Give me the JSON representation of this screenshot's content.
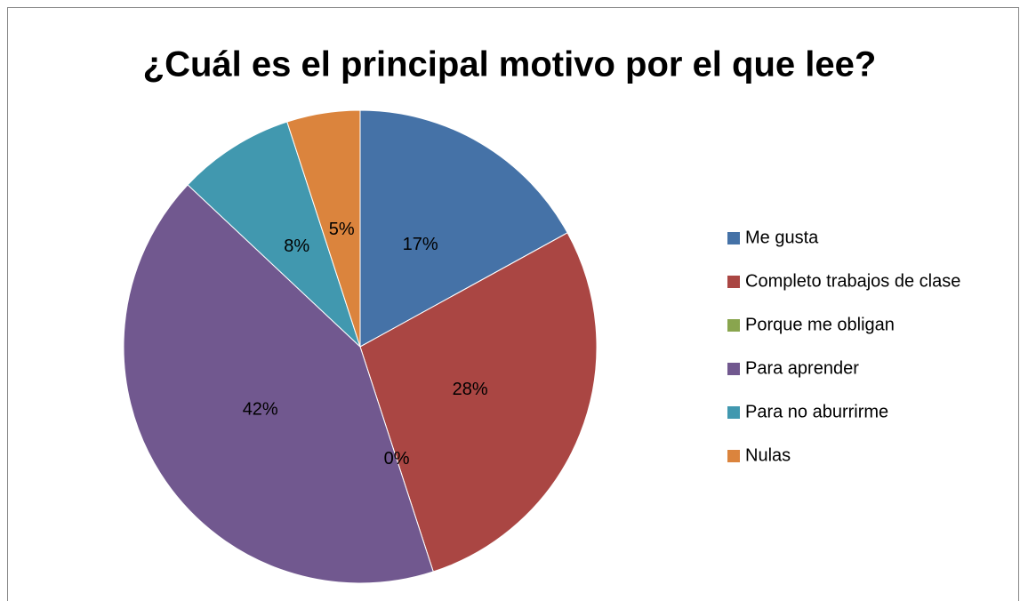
{
  "chart_data": {
    "type": "pie",
    "title": "¿Cuál es el principal motivo por el que lee?",
    "categories": [
      "Me gusta",
      "Completo trabajos de clase",
      "Porque me obligan",
      "Para aprender",
      "Para no aburrirme",
      "Nulas"
    ],
    "values": [
      17,
      28,
      0,
      42,
      8,
      5
    ],
    "value_labels": [
      "17%",
      "28%",
      "0%",
      "42%",
      "8%",
      "5%"
    ],
    "colors": [
      "#4572a7",
      "#aa4643",
      "#89a54e",
      "#71588f",
      "#4198af",
      "#db843d"
    ],
    "legend": "right"
  }
}
